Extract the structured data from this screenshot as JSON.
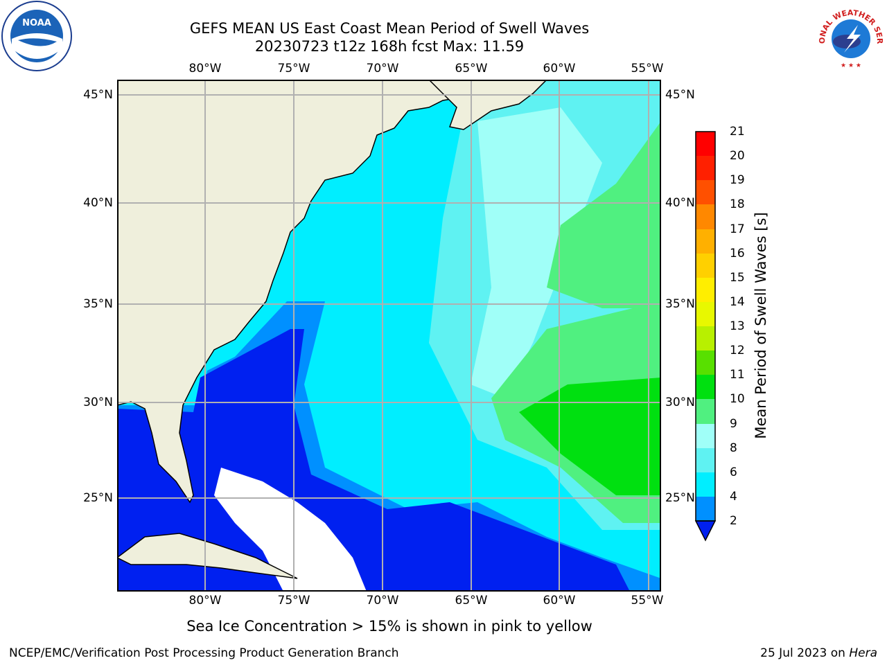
{
  "title_line1": "GEFS MEAN US East Coast Mean Period of Swell Waves",
  "title_line2": "20230723 t12z 168h fcst   Max: 11.59",
  "lon_ticks": [
    "80°W",
    "75°W",
    "70°W",
    "65°W",
    "60°W",
    "55°W"
  ],
  "lat_ticks": [
    "45°N",
    "40°N",
    "35°N",
    "30°N",
    "25°N"
  ],
  "colorbar": {
    "label": "Mean Period of Swell Waves [s]",
    "ticks": [
      "21",
      "20",
      "19",
      "18",
      "17",
      "16",
      "15",
      "14",
      "13",
      "12",
      "11",
      "10",
      "9",
      "8",
      "6",
      "4",
      "2"
    ],
    "colors": {
      "2-4": "#0020f0",
      "4-6": "#0090ff",
      "6-8": "#00eeff",
      "8-9": "#5ff2f2",
      "9-10": "#a0fff8",
      "10-11": "#50f080",
      "11-12": "#00e010",
      "12-13": "#58e000",
      "13-14": "#b8f000",
      "14-15": "#e8f800",
      "15-16": "#ffee00",
      "16-17": "#ffd000",
      "17-18": "#ffb000",
      "18-19": "#ff8800",
      "19-20": "#ff5000",
      "20-21": "#ff2000",
      "21": "#ff0000"
    },
    "land_color": "#efefdc"
  },
  "note": "Sea Ice Concentration > 15% is shown in pink to yellow",
  "credit": "NCEP/EMC/Verification Post Processing Product Generation Branch",
  "date": "25 Jul 2023 on",
  "machine": "Hera",
  "logos": {
    "noaa_text": "NOAA",
    "nws_text": "NATIONAL WEATHER SERVICE"
  }
}
